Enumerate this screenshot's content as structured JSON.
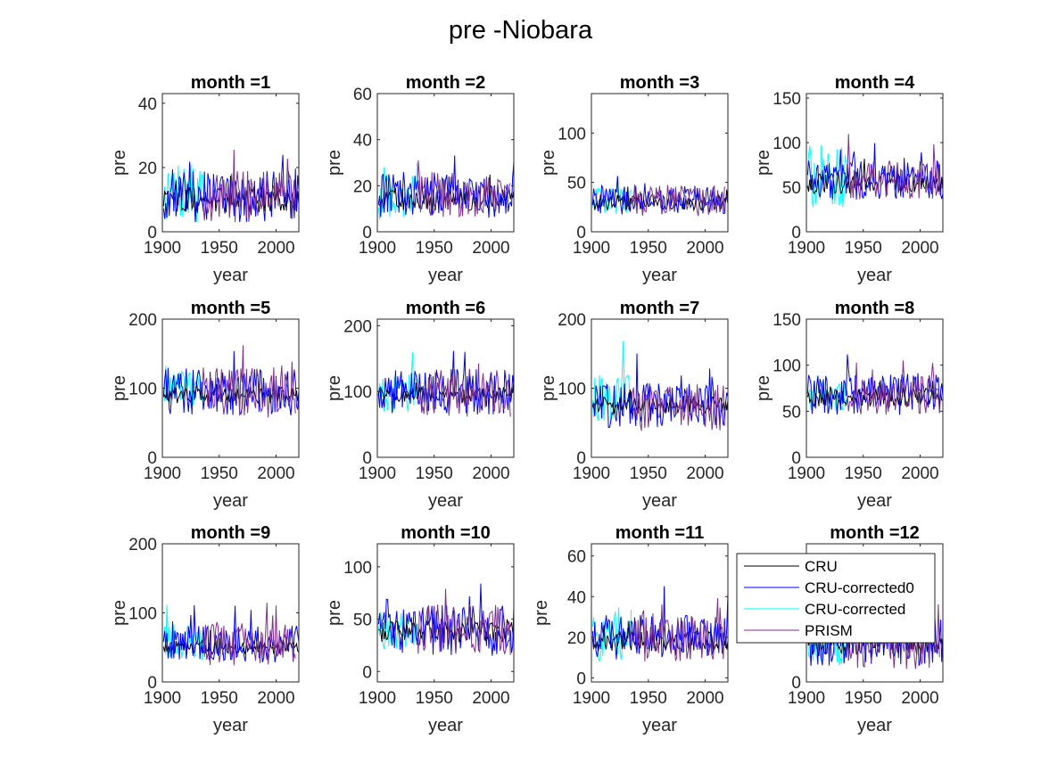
{
  "figure": {
    "title": "pre -Niobara"
  },
  "legend": {
    "entries": [
      {
        "name": "CRU",
        "color": "#000000"
      },
      {
        "name": "CRU-corrected0",
        "color": "#0000ff"
      },
      {
        "name": "CRU-corrected",
        "color": "#00ffff"
      },
      {
        "name": "PRISM",
        "color": "#7e2f8e"
      }
    ]
  },
  "chart_data": [
    {
      "type": "line",
      "title": "month =1",
      "xlabel": "year",
      "ylabel": "pre",
      "xlim": [
        1900,
        2020
      ],
      "ylim": [
        0,
        43
      ],
      "xticks": [
        1900,
        1950,
        2000
      ],
      "yticks": [
        0,
        20,
        40
      ],
      "series": [
        {
          "name": "CRU",
          "years": [
            1901,
            2020
          ],
          "mean": 10,
          "amp": 4
        },
        {
          "name": "CRU-corrected0",
          "years": [
            1901,
            2020
          ],
          "mean": 11,
          "amp": 8
        },
        {
          "name": "CRU-corrected",
          "years": [
            1901,
            1935
          ],
          "mean": 12,
          "amp": 9
        },
        {
          "name": "PRISM",
          "years": [
            1935,
            2017
          ],
          "mean": 11,
          "amp": 8
        }
      ]
    },
    {
      "type": "line",
      "title": "month =2",
      "xlabel": "year",
      "ylabel": "pre",
      "xlim": [
        1900,
        2020
      ],
      "ylim": [
        0,
        60
      ],
      "xticks": [
        1900,
        1950,
        2000
      ],
      "yticks": [
        0,
        20,
        40,
        60
      ],
      "series": [
        {
          "name": "CRU",
          "years": [
            1901,
            2020
          ],
          "mean": 14,
          "amp": 5
        },
        {
          "name": "CRU-corrected0",
          "years": [
            1901,
            2020
          ],
          "mean": 16,
          "amp": 10
        },
        {
          "name": "CRU-corrected",
          "years": [
            1901,
            1935
          ],
          "mean": 15,
          "amp": 10
        },
        {
          "name": "PRISM",
          "years": [
            1935,
            2017
          ],
          "mean": 16,
          "amp": 10
        }
      ]
    },
    {
      "type": "line",
      "title": "month =3",
      "xlabel": "year",
      "ylabel": "pre",
      "xlim": [
        1900,
        2020
      ],
      "ylim": [
        0,
        140
      ],
      "xticks": [
        1900,
        1950,
        2000
      ],
      "yticks": [
        0,
        50,
        100
      ],
      "series": [
        {
          "name": "CRU",
          "years": [
            1901,
            2020
          ],
          "mean": 30,
          "amp": 8
        },
        {
          "name": "CRU-corrected0",
          "years": [
            1901,
            2020
          ],
          "mean": 32,
          "amp": 15
        },
        {
          "name": "CRU-corrected",
          "years": [
            1901,
            1935
          ],
          "mean": 30,
          "amp": 14
        },
        {
          "name": "PRISM",
          "years": [
            1935,
            2017
          ],
          "mean": 32,
          "amp": 16
        }
      ]
    },
    {
      "type": "line",
      "title": "month =4",
      "xlabel": "year",
      "ylabel": "pre",
      "xlim": [
        1900,
        2020
      ],
      "ylim": [
        0,
        155
      ],
      "xticks": [
        1900,
        1950,
        2000
      ],
      "yticks": [
        0,
        50,
        100,
        150
      ],
      "series": [
        {
          "name": "CRU",
          "years": [
            1901,
            2020
          ],
          "mean": 55,
          "amp": 12
        },
        {
          "name": "CRU-corrected0",
          "years": [
            1901,
            2020
          ],
          "mean": 58,
          "amp": 22
        },
        {
          "name": "CRU-corrected",
          "years": [
            1901,
            1935
          ],
          "mean": 62,
          "amp": 35
        },
        {
          "name": "PRISM",
          "years": [
            1935,
            2017
          ],
          "mean": 58,
          "amp": 22
        }
      ]
    },
    {
      "type": "line",
      "title": "month =5",
      "xlabel": "year",
      "ylabel": "pre",
      "xlim": [
        1900,
        2020
      ],
      "ylim": [
        0,
        200
      ],
      "xticks": [
        1900,
        1950,
        2000
      ],
      "yticks": [
        0,
        100,
        200
      ],
      "series": [
        {
          "name": "CRU",
          "years": [
            1901,
            2020
          ],
          "mean": 90,
          "amp": 12
        },
        {
          "name": "CRU-corrected0",
          "years": [
            1901,
            2020
          ],
          "mean": 95,
          "amp": 35
        },
        {
          "name": "CRU-corrected",
          "years": [
            1901,
            1935
          ],
          "mean": 95,
          "amp": 30
        },
        {
          "name": "PRISM",
          "years": [
            1935,
            2017
          ],
          "mean": 95,
          "amp": 38
        }
      ]
    },
    {
      "type": "line",
      "title": "month =6",
      "xlabel": "year",
      "ylabel": "pre",
      "xlim": [
        1900,
        2020
      ],
      "ylim": [
        0,
        210
      ],
      "xticks": [
        1900,
        1950,
        2000
      ],
      "yticks": [
        0,
        100,
        200
      ],
      "series": [
        {
          "name": "CRU",
          "years": [
            1901,
            2020
          ],
          "mean": 95,
          "amp": 12
        },
        {
          "name": "CRU-corrected0",
          "years": [
            1901,
            2020
          ],
          "mean": 100,
          "amp": 35
        },
        {
          "name": "CRU-corrected",
          "years": [
            1901,
            1935
          ],
          "mean": 100,
          "amp": 32
        },
        {
          "name": "PRISM",
          "years": [
            1935,
            2017
          ],
          "mean": 98,
          "amp": 38
        }
      ]
    },
    {
      "type": "line",
      "title": "month =7",
      "xlabel": "year",
      "ylabel": "pre",
      "xlim": [
        1900,
        2020
      ],
      "ylim": [
        0,
        200
      ],
      "xticks": [
        1900,
        1950,
        2000
      ],
      "yticks": [
        0,
        100,
        200
      ],
      "series": [
        {
          "name": "CRU",
          "years": [
            1901,
            2020
          ],
          "mean": 75,
          "amp": 12
        },
        {
          "name": "CRU-corrected0",
          "years": [
            1901,
            2020
          ],
          "mean": 75,
          "amp": 32
        },
        {
          "name": "CRU-corrected",
          "years": [
            1901,
            1935
          ],
          "mean": 85,
          "amp": 35
        },
        {
          "name": "PRISM",
          "years": [
            1935,
            2017
          ],
          "mean": 72,
          "amp": 35
        }
      ]
    },
    {
      "type": "line",
      "title": "month =8",
      "xlabel": "year",
      "ylabel": "pre",
      "xlim": [
        1900,
        2020
      ],
      "ylim": [
        0,
        150
      ],
      "xticks": [
        1900,
        1950,
        2000
      ],
      "yticks": [
        0,
        50,
        100,
        150
      ],
      "series": [
        {
          "name": "CRU",
          "years": [
            1901,
            2020
          ],
          "mean": 65,
          "amp": 10
        },
        {
          "name": "CRU-corrected0",
          "years": [
            1901,
            2020
          ],
          "mean": 68,
          "amp": 22
        },
        {
          "name": "CRU-corrected",
          "years": [
            1901,
            1935
          ],
          "mean": 70,
          "amp": 20
        },
        {
          "name": "PRISM",
          "years": [
            1935,
            2017
          ],
          "mean": 68,
          "amp": 22
        }
      ]
    },
    {
      "type": "line",
      "title": "month =9",
      "xlabel": "year",
      "ylabel": "pre",
      "xlim": [
        1900,
        2020
      ],
      "ylim": [
        0,
        200
      ],
      "xticks": [
        1900,
        1950,
        2000
      ],
      "yticks": [
        0,
        100,
        200
      ],
      "series": [
        {
          "name": "CRU",
          "years": [
            1901,
            2020
          ],
          "mean": 50,
          "amp": 10
        },
        {
          "name": "CRU-corrected0",
          "years": [
            1901,
            2020
          ],
          "mean": 55,
          "amp": 28
        },
        {
          "name": "CRU-corrected",
          "years": [
            1901,
            1935
          ],
          "mean": 55,
          "amp": 28
        },
        {
          "name": "PRISM",
          "years": [
            1935,
            2017
          ],
          "mean": 55,
          "amp": 32
        }
      ]
    },
    {
      "type": "line",
      "title": "month =10",
      "xlabel": "year",
      "ylabel": "pre",
      "xlim": [
        1900,
        2020
      ],
      "ylim": [
        -10,
        122
      ],
      "xticks": [
        1900,
        1950,
        2000
      ],
      "yticks": [
        0,
        50,
        100
      ],
      "series": [
        {
          "name": "CRU",
          "years": [
            1901,
            2020
          ],
          "mean": 38,
          "amp": 10
        },
        {
          "name": "CRU-corrected0",
          "years": [
            1901,
            2020
          ],
          "mean": 40,
          "amp": 25
        },
        {
          "name": "CRU-corrected",
          "years": [
            1901,
            1935
          ],
          "mean": 40,
          "amp": 22
        },
        {
          "name": "PRISM",
          "years": [
            1935,
            2017
          ],
          "mean": 40,
          "amp": 25
        }
      ]
    },
    {
      "type": "line",
      "title": "month =11",
      "xlabel": "year",
      "ylabel": "pre",
      "xlim": [
        1900,
        2020
      ],
      "ylim": [
        -2,
        66
      ],
      "xticks": [
        1900,
        1950,
        2000
      ],
      "yticks": [
        0,
        20,
        40,
        60
      ],
      "series": [
        {
          "name": "CRU",
          "years": [
            1901,
            2020
          ],
          "mean": 18,
          "amp": 5
        },
        {
          "name": "CRU-corrected0",
          "years": [
            1901,
            2020
          ],
          "mean": 20,
          "amp": 11
        },
        {
          "name": "CRU-corrected",
          "years": [
            1901,
            1935
          ],
          "mean": 22,
          "amp": 14
        },
        {
          "name": "PRISM",
          "years": [
            1935,
            2017
          ],
          "mean": 20,
          "amp": 12
        }
      ]
    },
    {
      "type": "line",
      "title": "month =12",
      "xlabel": "year",
      "ylabel": "pre",
      "xlim": [
        1900,
        2020
      ],
      "ylim": [
        0,
        43
      ],
      "xticks": [
        1900,
        1950,
        2000
      ],
      "yticks": [
        0
      ],
      "series": [
        {
          "name": "CRU",
          "years": [
            1901,
            2020
          ],
          "mean": 12,
          "amp": 4
        },
        {
          "name": "CRU-corrected0",
          "years": [
            1901,
            2020
          ],
          "mean": 13,
          "amp": 8
        },
        {
          "name": "CRU-corrected",
          "years": [
            1901,
            1935
          ],
          "mean": 13,
          "amp": 8
        },
        {
          "name": "PRISM",
          "years": [
            1935,
            2017
          ],
          "mean": 13,
          "amp": 9
        }
      ]
    }
  ]
}
